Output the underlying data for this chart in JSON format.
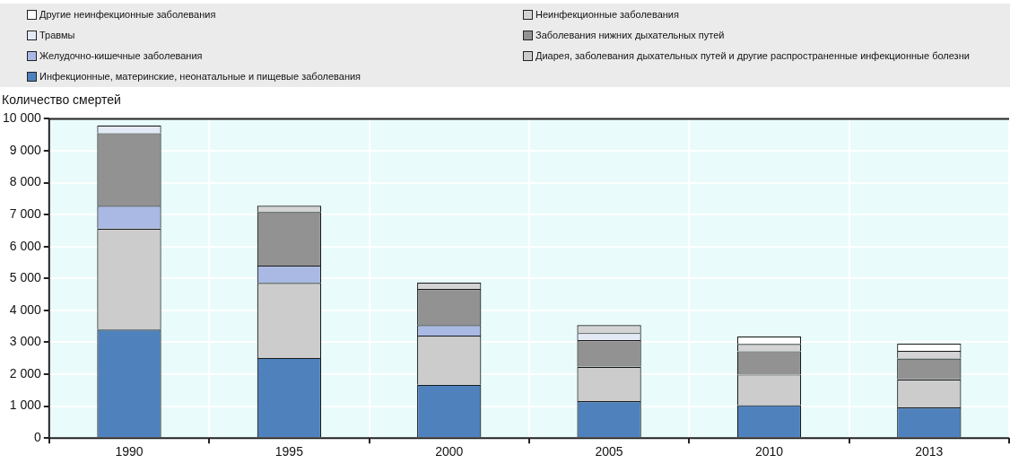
{
  "chart_data": {
    "type": "bar",
    "stacked": true,
    "legend": "top",
    "grid": true,
    "ylabel": "Количество смертей",
    "categories": [
      "1990",
      "1995",
      "2000",
      "2005",
      "2010",
      "2013"
    ],
    "ylim": [
      0,
      10000
    ],
    "yticks": [
      {
        "value": 0,
        "label": "0"
      },
      {
        "value": 1000,
        "label": "1 000"
      },
      {
        "value": 2000,
        "label": "2 000"
      },
      {
        "value": 3000,
        "label": "3 000"
      },
      {
        "value": 4000,
        "label": "4 000"
      },
      {
        "value": 5000,
        "label": "5 000"
      },
      {
        "value": 6000,
        "label": "6 000"
      },
      {
        "value": 7000,
        "label": "7 000"
      },
      {
        "value": 8000,
        "label": "8 000"
      },
      {
        "value": 9000,
        "label": "9 000"
      },
      {
        "value": 10000,
        "label": "10 000"
      }
    ],
    "series": [
      {
        "name": "Инфекционные, материнские, неонатальные и пищевые заболевания",
        "color": "#4f81bd",
        "values": [
          3400,
          2510,
          1670,
          1160,
          1030,
          960
        ]
      },
      {
        "name": "Диарея, заболевания дыхательных путей и другие распространенные инфекционные болезни",
        "color": "#cccccc",
        "values": [
          3160,
          2350,
          1540,
          1070,
          960,
          880
        ]
      },
      {
        "name": "Желудочно-кишечные заболевания",
        "color": "#a9b9e3",
        "values": [
          720,
          540,
          330,
          null,
          null,
          null
        ]
      },
      {
        "name": "Заболевания нижних дыхательных путей",
        "color": "#929292",
        "values": [
          2270,
          1680,
          1130,
          840,
          730,
          650
        ]
      },
      {
        "name": "Травмы",
        "color": "#e4e9f6",
        "values": [
          240,
          null,
          null,
          220,
          null,
          null
        ]
      },
      {
        "name": "Неинфекционные заболевания",
        "color": "#d4d4d4",
        "values": [
          null,
          200,
          200,
          250,
          230,
          240
        ]
      },
      {
        "name": "Другие неинфекционные заболевания",
        "color": "#ffffff",
        "values": [
          null,
          null,
          null,
          null,
          230,
          230
        ]
      }
    ]
  }
}
